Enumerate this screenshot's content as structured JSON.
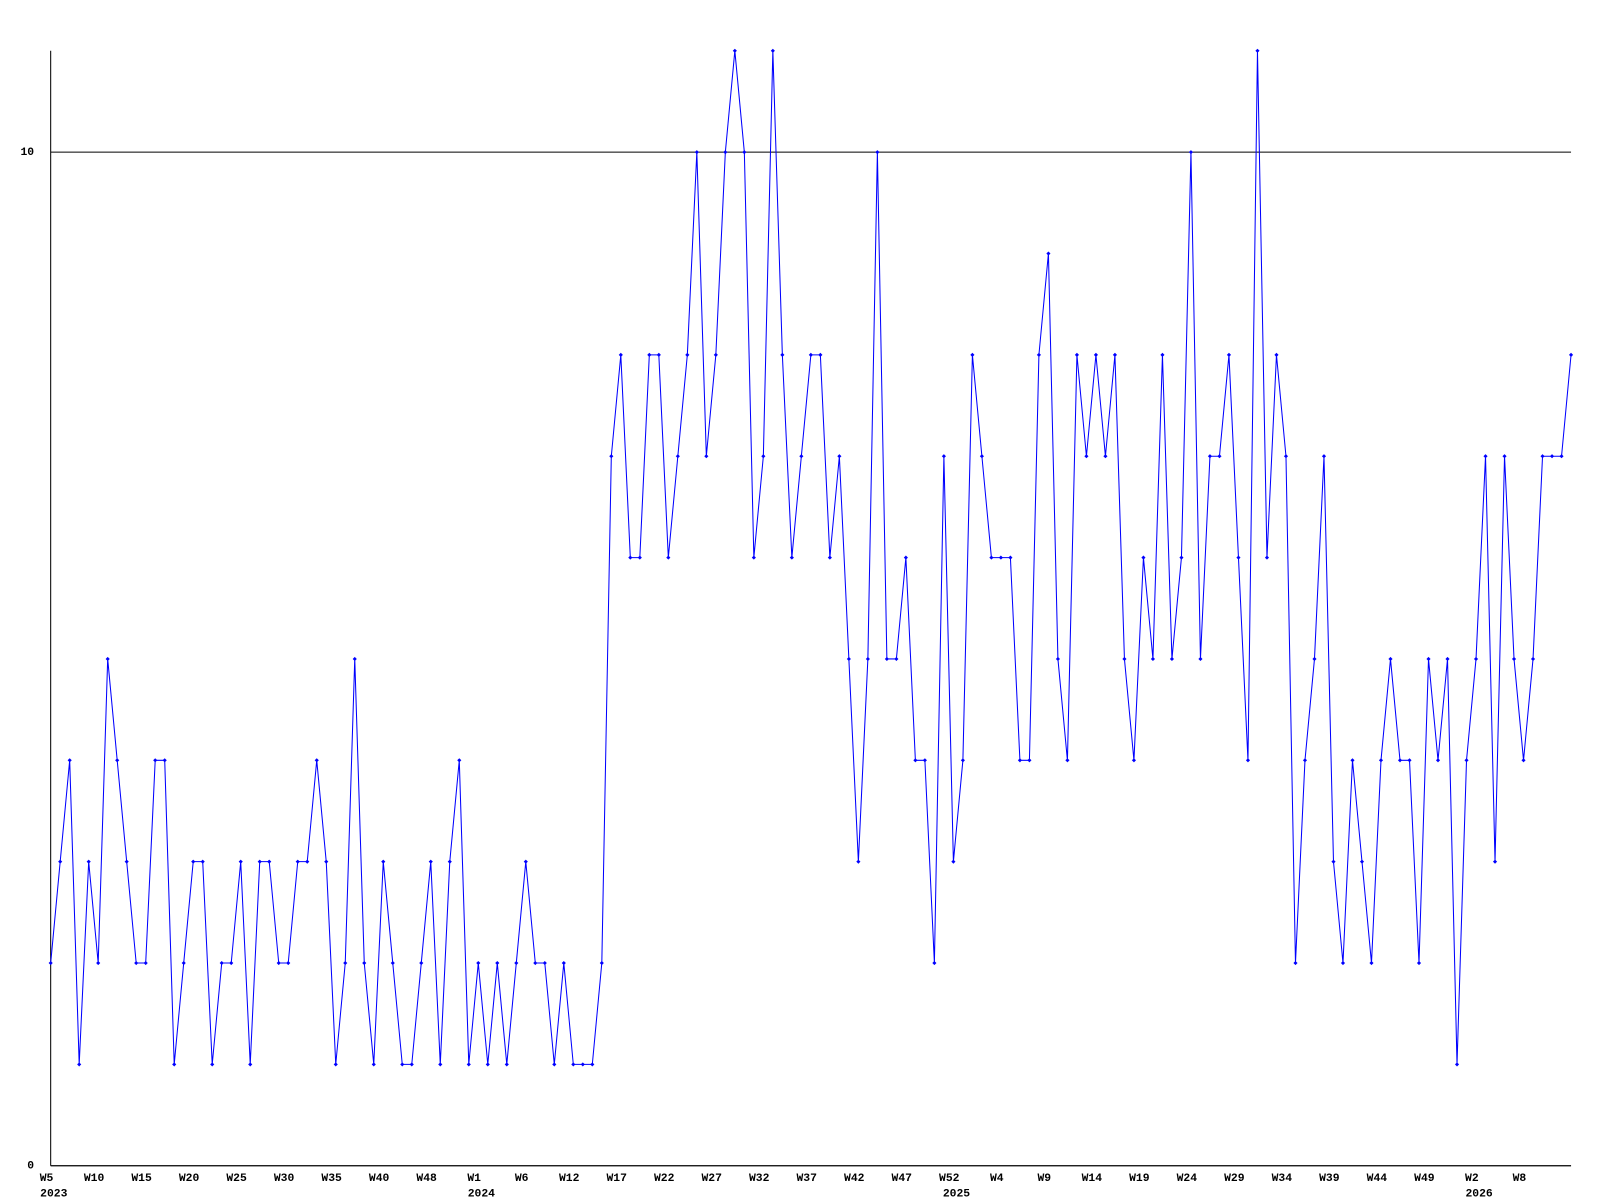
{
  "chart_data": {
    "type": "line",
    "categories": [
      "W5",
      null,
      null,
      null,
      null,
      "W10",
      null,
      null,
      null,
      null,
      "W15",
      null,
      null,
      null,
      null,
      "W20",
      null,
      null,
      null,
      null,
      "W25",
      null,
      null,
      null,
      null,
      "W30",
      null,
      null,
      null,
      null,
      "W35",
      null,
      null,
      null,
      null,
      "W40",
      null,
      null,
      null,
      null,
      "W48",
      null,
      null,
      null,
      null,
      "W1",
      null,
      null,
      null,
      null,
      "W6",
      null,
      null,
      null,
      null,
      "W12",
      null,
      null,
      null,
      null,
      "W17",
      null,
      null,
      null,
      null,
      "W22",
      null,
      null,
      null,
      null,
      "W27",
      null,
      null,
      null,
      null,
      "W32",
      null,
      null,
      null,
      null,
      "W37",
      null,
      null,
      null,
      null,
      "W42",
      null,
      null,
      null,
      null,
      "W47",
      null,
      null,
      null,
      null,
      "W52",
      null,
      null,
      null,
      null,
      "W4",
      null,
      null,
      null,
      null,
      "W9",
      null,
      null,
      null,
      null,
      "W14",
      null,
      null,
      null,
      null,
      "W19",
      null,
      null,
      null,
      null,
      "W24",
      null,
      null,
      null,
      null,
      "W29",
      null,
      null,
      null,
      null,
      "W34",
      null,
      null,
      null,
      null,
      "W39",
      null,
      null,
      null,
      null,
      "W44",
      null,
      null,
      null,
      null,
      "W49",
      null,
      null,
      null,
      null,
      "W2",
      null,
      null,
      null,
      null,
      "W8",
      null,
      null,
      null,
      null,
      null
    ],
    "year_labels": [
      "2023",
      null,
      null,
      null,
      null,
      null,
      null,
      null,
      null,
      null,
      null,
      null,
      null,
      null,
      null,
      null,
      null,
      null,
      null,
      null,
      null,
      null,
      null,
      null,
      null,
      null,
      null,
      null,
      null,
      null,
      null,
      null,
      null,
      null,
      null,
      null,
      null,
      null,
      null,
      null,
      null,
      null,
      null,
      null,
      null,
      "2024",
      null,
      null,
      null,
      null,
      null,
      null,
      null,
      null,
      null,
      null,
      null,
      null,
      null,
      null,
      null,
      null,
      null,
      null,
      null,
      null,
      null,
      null,
      null,
      null,
      null,
      null,
      null,
      null,
      null,
      null,
      null,
      null,
      null,
      null,
      null,
      null,
      null,
      null,
      null,
      null,
      null,
      null,
      null,
      null,
      null,
      null,
      null,
      null,
      null,
      "2025",
      null,
      null,
      null,
      null,
      null,
      null,
      null,
      null,
      null,
      null,
      null,
      null,
      null,
      null,
      null,
      null,
      null,
      null,
      null,
      null,
      null,
      null,
      null,
      null,
      null,
      null,
      null,
      null,
      null,
      null,
      null,
      null,
      null,
      null,
      null,
      null,
      null,
      null,
      null,
      null,
      null,
      null,
      null,
      null,
      null,
      null,
      null,
      null,
      null,
      null,
      null,
      null,
      null,
      null,
      "2026",
      null,
      null,
      null,
      null,
      null,
      null,
      null,
      null,
      null,
      null
    ],
    "values": [
      2,
      3,
      4,
      1,
      3,
      2,
      5,
      4,
      3,
      2,
      2,
      4,
      4,
      1,
      2,
      3,
      3,
      1,
      2,
      2,
      3,
      1,
      3,
      3,
      2,
      2,
      3,
      3,
      4,
      3,
      1,
      2,
      5,
      2,
      1,
      3,
      2,
      1,
      1,
      2,
      3,
      1,
      3,
      4,
      1,
      2,
      1,
      2,
      1,
      2,
      3,
      2,
      2,
      1,
      2,
      1,
      1,
      1,
      2,
      7,
      8,
      6,
      6,
      8,
      8,
      6,
      7,
      8,
      10,
      7,
      8,
      10,
      11,
      10,
      6,
      7,
      11,
      8,
      6,
      7,
      8,
      8,
      6,
      7,
      5,
      3,
      5,
      10,
      5,
      5,
      6,
      4,
      4,
      2,
      7,
      3,
      4,
      8,
      7,
      6,
      6,
      6,
      4,
      4,
      8,
      9,
      5,
      4,
      8,
      7,
      8,
      7,
      8,
      5,
      4,
      6,
      5,
      8,
      5,
      6,
      10,
      5,
      7,
      7,
      8,
      6,
      4,
      11,
      6,
      8,
      7,
      2,
      4,
      5,
      7,
      3,
      2,
      4,
      3,
      2,
      4,
      5,
      4,
      4,
      2,
      5,
      4,
      5,
      1,
      4,
      5,
      7,
      3,
      7,
      5,
      4,
      5,
      7,
      7,
      7,
      8
    ],
    "color": "#0000ff",
    "ylim": [
      0,
      11
    ],
    "yticks": [
      0,
      10
    ],
    "grid": true
  }
}
